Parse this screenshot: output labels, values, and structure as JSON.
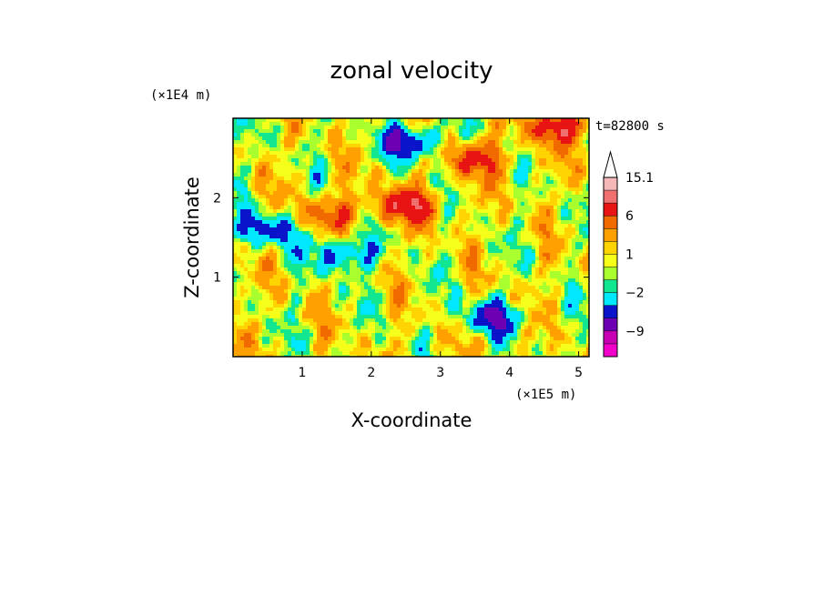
{
  "chart_data": {
    "type": "contour",
    "title": "zonal velocity",
    "xlabel": "X-coordinate",
    "ylabel": "Z-coordinate",
    "x_unit": "(×1E5 m)",
    "y_unit": "(×1E4 m)",
    "time_label": "t=82800 s",
    "xlim": [
      0,
      5.15
    ],
    "ylim": [
      0,
      3.0
    ],
    "x_ticks": [
      1,
      2,
      3,
      4,
      5
    ],
    "y_ticks": [
      1,
      2
    ],
    "colorbar": {
      "labels": [
        "15.1",
        "6",
        "1",
        "−2",
        "−9"
      ],
      "levels_high_to_low": [
        15.1,
        12,
        9,
        6,
        4,
        2,
        1,
        0,
        -1,
        -2,
        -4,
        -6,
        -9,
        -12
      ],
      "colors_high_to_low": [
        "#f4b8b8",
        "#f07070",
        "#e81414",
        "#f06a00",
        "#ffa000",
        "#ffd400",
        "#f6ff1a",
        "#a8ff2d",
        "#12e690",
        "#00e8ff",
        "#0a14c8",
        "#6e00b4",
        "#c800b4",
        "#f000c8"
      ],
      "extend_max": true
    },
    "field": {
      "description_levels": [
        -9,
        -6,
        -4,
        -2,
        -1,
        0,
        1,
        2,
        4,
        6,
        9
      ],
      "features": [
        {
          "x": 2.6,
          "z": 2.7,
          "value": -6
        },
        {
          "x": 1.6,
          "z": 1.3,
          "value": -5
        },
        {
          "x": 0.5,
          "z": 1.6,
          "value": -5
        },
        {
          "x": 3.75,
          "z": 0.5,
          "value": -5
        },
        {
          "x": 2.5,
          "z": 1.9,
          "value": 6
        },
        {
          "x": 3.5,
          "z": 2.5,
          "value": 5
        },
        {
          "x": 4.7,
          "z": 2.9,
          "value": 6
        },
        {
          "x": 1.4,
          "z": 1.8,
          "value": 4
        }
      ]
    }
  }
}
